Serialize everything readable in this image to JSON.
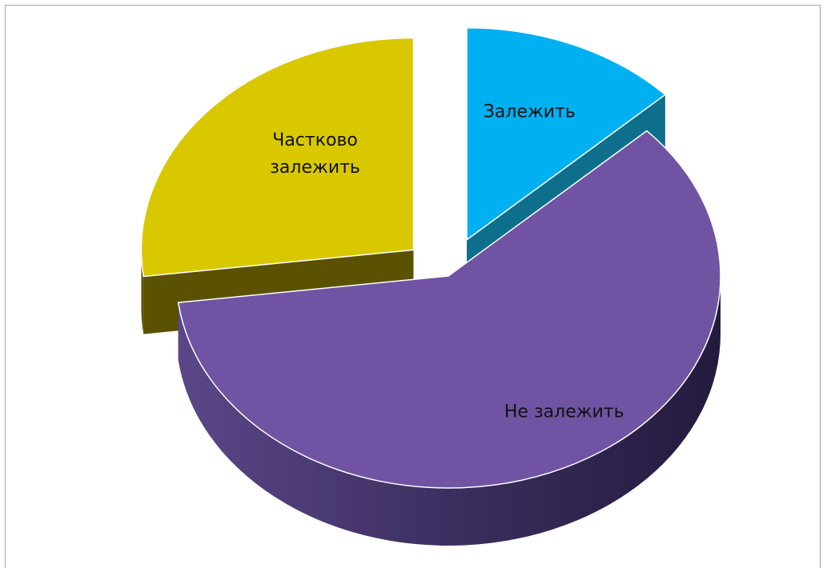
{
  "chart_data": {
    "type": "pie",
    "style": "3d-exploded",
    "title": "",
    "legend": "none",
    "slices": [
      {
        "label": "Залежить",
        "label_lines": [
          "Залежить"
        ],
        "value": 13,
        "color": "#00b0f0",
        "side_color": "#0e6f8d",
        "exploded": true
      },
      {
        "label": "Не залежить",
        "label_lines": [
          "Не залежить"
        ],
        "value": 60,
        "color": "#7054a3",
        "side_color": "#3c2d5e",
        "exploded": false
      },
      {
        "label": "Частково залежить",
        "label_lines": [
          "Частково",
          "залежить"
        ],
        "value": 27,
        "color": "#d9c800",
        "side_color": "#5a5200",
        "exploded": true
      }
    ]
  }
}
